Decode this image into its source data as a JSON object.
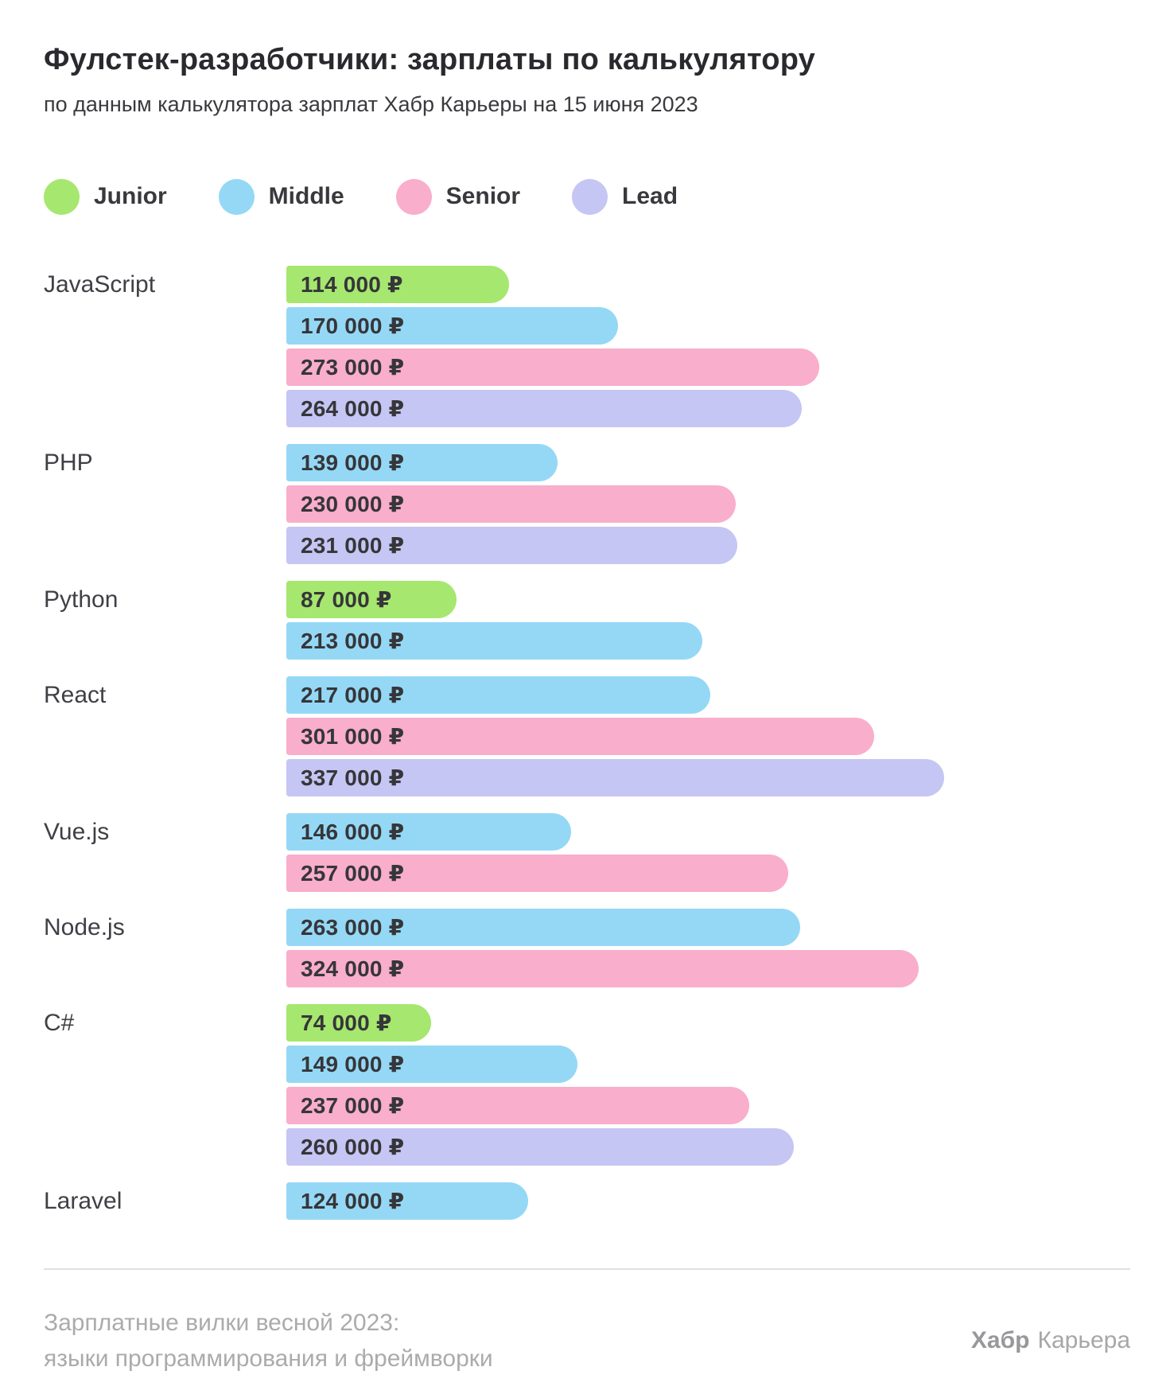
{
  "header": {
    "title": "Фулстек-разработчики: зарплаты по калькулятору",
    "subtitle": "по данным калькулятора зарплат Хабр Карьеры на 15 июня 2023"
  },
  "legend": {
    "items": [
      {
        "label": "Junior",
        "color": "#a6e76f"
      },
      {
        "label": "Middle",
        "color": "#95d8f6"
      },
      {
        "label": "Senior",
        "color": "#f9aecb"
      },
      {
        "label": "Lead",
        "color": "#c5c6f4"
      }
    ]
  },
  "chart_data": {
    "type": "bar",
    "orientation": "horizontal",
    "title": "Фулстек-разработчики: зарплаты по калькулятору",
    "unit": "₽",
    "currency": "RUB",
    "xlim": [
      0,
      340000
    ],
    "grid": false,
    "legend_position": "top",
    "levels": [
      "Junior",
      "Middle",
      "Senior",
      "Lead"
    ],
    "level_colors": {
      "Junior": "#a6e76f",
      "Middle": "#95d8f6",
      "Senior": "#f9aecb",
      "Lead": "#c5c6f4"
    },
    "groups": [
      {
        "category": "JavaScript",
        "bars": [
          {
            "level": "Junior",
            "value": 114000,
            "label": "114 000 ₽"
          },
          {
            "level": "Middle",
            "value": 170000,
            "label": "170 000 ₽"
          },
          {
            "level": "Senior",
            "value": 273000,
            "label": "273 000 ₽"
          },
          {
            "level": "Lead",
            "value": 264000,
            "label": "264 000 ₽"
          }
        ]
      },
      {
        "category": "PHP",
        "bars": [
          {
            "level": "Middle",
            "value": 139000,
            "label": "139 000 ₽"
          },
          {
            "level": "Senior",
            "value": 230000,
            "label": "230 000 ₽"
          },
          {
            "level": "Lead",
            "value": 231000,
            "label": "231 000 ₽"
          }
        ]
      },
      {
        "category": "Python",
        "bars": [
          {
            "level": "Junior",
            "value": 87000,
            "label": "87 000 ₽"
          },
          {
            "level": "Middle",
            "value": 213000,
            "label": "213 000 ₽"
          }
        ]
      },
      {
        "category": "React",
        "bars": [
          {
            "level": "Middle",
            "value": 217000,
            "label": "217 000 ₽"
          },
          {
            "level": "Senior",
            "value": 301000,
            "label": "301 000 ₽"
          },
          {
            "level": "Lead",
            "value": 337000,
            "label": "337 000 ₽"
          }
        ]
      },
      {
        "category": "Vue.js",
        "bars": [
          {
            "level": "Middle",
            "value": 146000,
            "label": "146 000 ₽"
          },
          {
            "level": "Senior",
            "value": 257000,
            "label": "257 000 ₽"
          }
        ]
      },
      {
        "category": "Node.js",
        "bars": [
          {
            "level": "Middle",
            "value": 263000,
            "label": "263 000 ₽"
          },
          {
            "level": "Senior",
            "value": 324000,
            "label": "324 000 ₽"
          }
        ]
      },
      {
        "category": "C#",
        "bars": [
          {
            "level": "Junior",
            "value": 74000,
            "label": "74 000 ₽"
          },
          {
            "level": "Middle",
            "value": 149000,
            "label": "149 000 ₽"
          },
          {
            "level": "Senior",
            "value": 237000,
            "label": "237 000 ₽"
          },
          {
            "level": "Lead",
            "value": 260000,
            "label": "260 000 ₽"
          }
        ]
      },
      {
        "category": "Laravel",
        "bars": [
          {
            "level": "Middle",
            "value": 124000,
            "label": "124 000 ₽"
          }
        ]
      }
    ]
  },
  "footer": {
    "caption_line1": "Зарплатные вилки весной 2023:",
    "caption_line2": "языки программирования и фреймворки",
    "brand_bold": "Хабр",
    "brand_regular": "Карьера"
  }
}
